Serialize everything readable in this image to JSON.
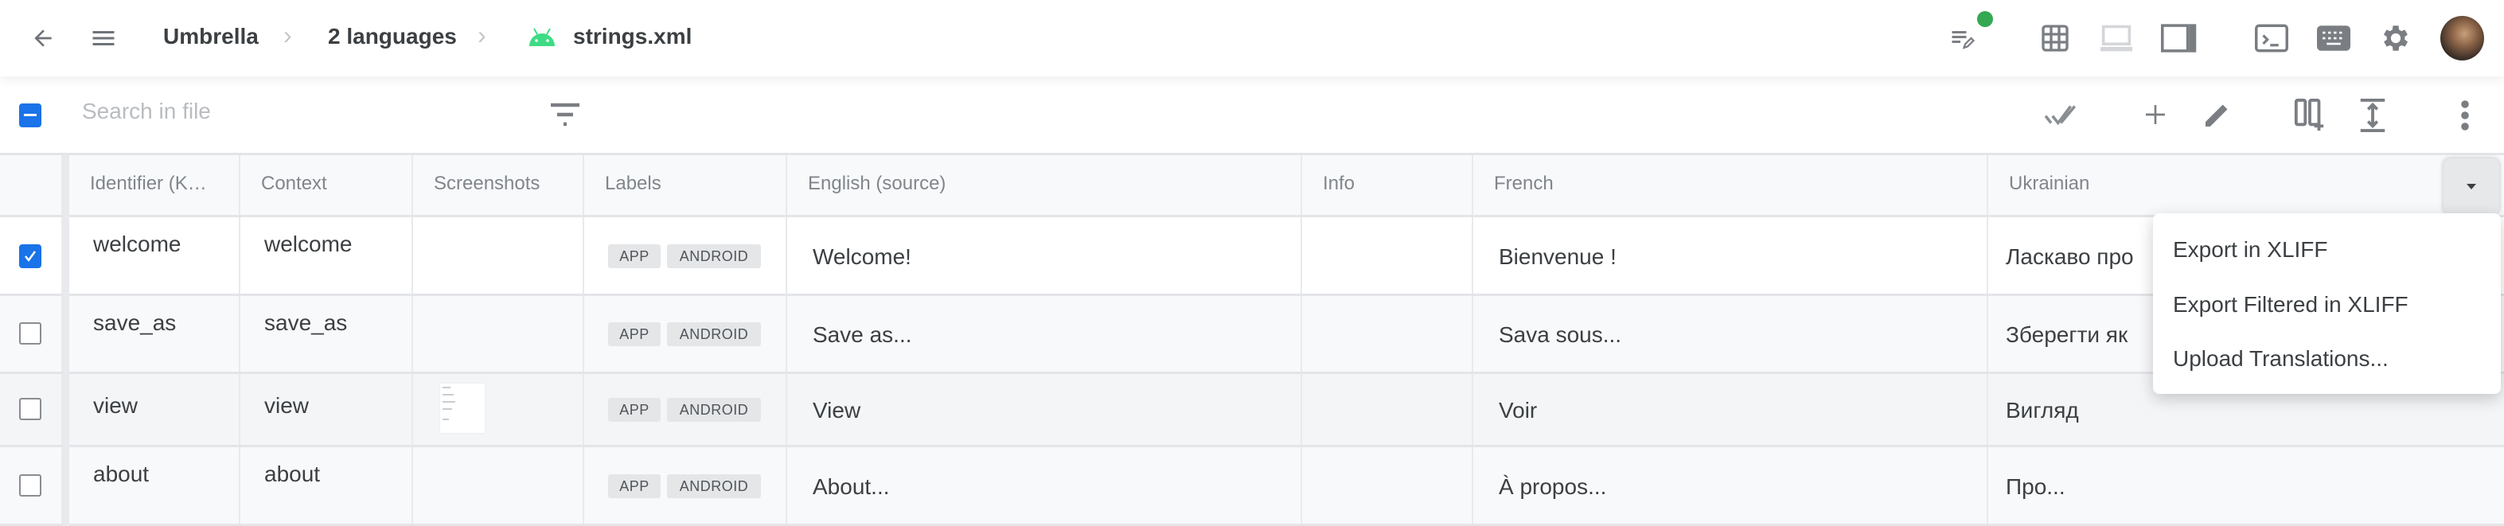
{
  "header": {
    "breadcrumb": [
      "Umbrella",
      "2 languages",
      "strings.xml"
    ],
    "icons": [
      "back-arrow-icon",
      "menu-icon",
      "android-icon",
      "edit-notes-icon",
      "grid-icon",
      "laptop-icon",
      "side-panel-icon",
      "terminal-icon",
      "keyboard-icon",
      "gear-icon",
      "avatar"
    ],
    "status_dot_color": "#34a853",
    "android_color": "#3ddc84"
  },
  "toolbar": {
    "search_placeholder": "Search in file",
    "icons": [
      "filter-icon",
      "double-check-icon",
      "plus-icon",
      "pencil-icon",
      "add-column-icon",
      "expand-vertical-icon",
      "more-vert-icon"
    ],
    "accent": "#1a73e8"
  },
  "table": {
    "columns": [
      "Identifier (K…",
      "Context",
      "Screenshots",
      "Labels",
      "English (source)",
      "Info",
      "French",
      "Ukrainian"
    ],
    "rows": [
      {
        "checked": true,
        "identifier": "welcome",
        "context": "welcome",
        "labels": [
          "APP",
          "ANDROID"
        ],
        "english": "Welcome!",
        "info": "",
        "french": "Bienvenue !",
        "ukrainian": "Ласкаво про"
      },
      {
        "checked": false,
        "identifier": "save_as",
        "context": "save_as",
        "labels": [
          "APP",
          "ANDROID"
        ],
        "english": "Save as...",
        "info": "",
        "french": "Sava sous...",
        "ukrainian": "Зберегти як"
      },
      {
        "checked": false,
        "identifier": "view",
        "context": "view",
        "labels": [
          "APP",
          "ANDROID"
        ],
        "english": "View",
        "info": "",
        "french": "Voir",
        "ukrainian": "Вигляд"
      },
      {
        "checked": false,
        "identifier": "about",
        "context": "about",
        "labels": [
          "APP",
          "ANDROID"
        ],
        "english": "About...",
        "info": "",
        "french": "À propos...",
        "ukrainian": "Про..."
      }
    ]
  },
  "menu": {
    "items": [
      "Export in XLIFF",
      "Export Filtered in XLIFF",
      "Upload Translations..."
    ]
  }
}
